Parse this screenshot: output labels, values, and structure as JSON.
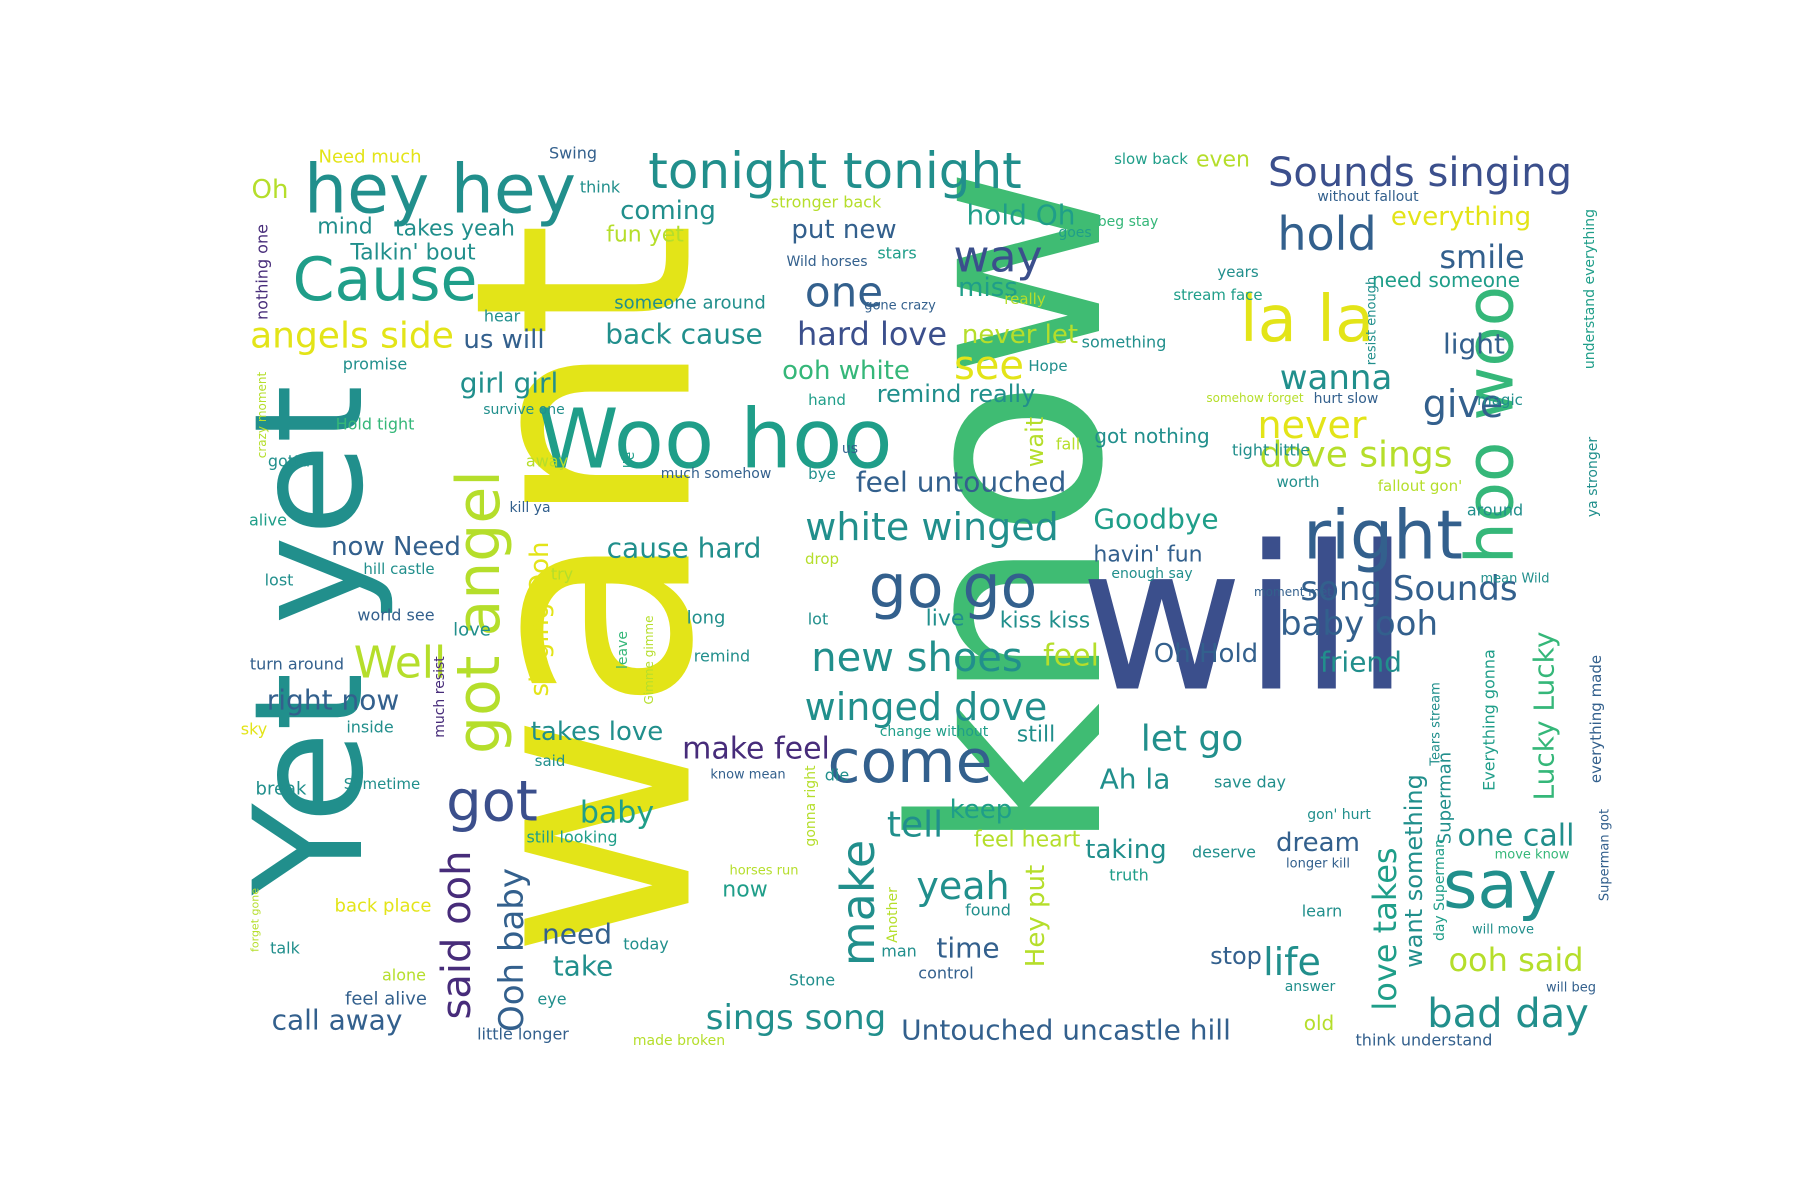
{
  "palette": {
    "navy": "#3b4f8c",
    "purple": "#472c7a",
    "blue": "#33608d",
    "teal": "#218f8c",
    "teal2": "#1f9e89",
    "green": "#35b779",
    "lime": "#b5de2b",
    "yellow": "#e3e418",
    "kgreen": "#3fbc73"
  },
  "words": [
    {
      "text": "want",
      "color": "yellow"
    },
    {
      "text": "know",
      "color": "kgreen"
    },
    {
      "text": "will",
      "color": "navy"
    },
    {
      "text": "Yet yet",
      "color": "teal"
    },
    {
      "text": "Woo hoo",
      "color": "teal2"
    },
    {
      "text": "hoo woo",
      "color": "green"
    },
    {
      "text": "hey hey",
      "color": "teal"
    },
    {
      "text": "Cause",
      "color": "teal2"
    },
    {
      "text": "tonight tonight",
      "color": "teal"
    },
    {
      "text": "Sounds singing",
      "color": "navy"
    },
    {
      "text": "la la",
      "color": "yellow"
    },
    {
      "text": "right",
      "color": "blue"
    },
    {
      "text": "go go",
      "color": "blue"
    },
    {
      "text": "got angel",
      "color": "lime"
    },
    {
      "text": "come",
      "color": "blue"
    },
    {
      "text": "say",
      "color": "teal"
    },
    {
      "text": "hold",
      "color": "blue"
    },
    {
      "text": "way",
      "color": "navy"
    },
    {
      "text": "one",
      "color": "blue"
    },
    {
      "text": "got",
      "color": "navy"
    },
    {
      "text": "make",
      "color": "teal"
    },
    {
      "text": "said ooh",
      "color": "purple"
    },
    {
      "text": "Ooh baby",
      "color": "blue"
    },
    {
      "text": "angels side",
      "color": "yellow"
    },
    {
      "text": "Well",
      "color": "lime"
    },
    {
      "text": "new shoes",
      "color": "teal"
    },
    {
      "text": "winged dove",
      "color": "teal"
    },
    {
      "text": "white winged",
      "color": "teal"
    },
    {
      "text": "give",
      "color": "blue"
    },
    {
      "text": "see",
      "color": "yellow"
    },
    {
      "text": "wanna",
      "color": "teal"
    },
    {
      "text": "never",
      "color": "yellow"
    },
    {
      "text": "dove sings",
      "color": "lime"
    },
    {
      "text": "baby ooh",
      "color": "blue"
    },
    {
      "text": "song Sounds",
      "color": "blue"
    },
    {
      "text": "bad day",
      "color": "teal"
    },
    {
      "text": "life",
      "color": "teal"
    },
    {
      "text": "love takes",
      "color": "teal2"
    },
    {
      "text": "yeah",
      "color": "teal"
    },
    {
      "text": "tell",
      "color": "teal"
    },
    {
      "text": "smile",
      "color": "blue"
    },
    {
      "text": "Lucky Lucky",
      "color": "green"
    },
    {
      "text": "hard love",
      "color": "navy"
    },
    {
      "text": "sings song",
      "color": "teal"
    },
    {
      "text": "Untouched uncastle hill",
      "color": "blue"
    },
    {
      "text": "let go",
      "color": "teal"
    },
    {
      "text": "Goodbye",
      "color": "teal2"
    },
    {
      "text": "Ah la",
      "color": "teal"
    },
    {
      "text": "ooh said",
      "color": "lime"
    },
    {
      "text": "one call",
      "color": "teal"
    },
    {
      "text": "Hey put",
      "color": "lime"
    },
    {
      "text": "make feel",
      "color": "purple"
    },
    {
      "text": "feel untouched",
      "color": "blue"
    },
    {
      "text": "put new",
      "color": "blue"
    },
    {
      "text": "girl girl",
      "color": "teal"
    },
    {
      "text": "cause hard",
      "color": "teal"
    },
    {
      "text": "back cause",
      "color": "teal"
    },
    {
      "text": "us will",
      "color": "blue"
    },
    {
      "text": "feel",
      "color": "lime"
    },
    {
      "text": "Oh Hold",
      "color": "blue"
    },
    {
      "text": "friend",
      "color": "teal"
    },
    {
      "text": "right now",
      "color": "blue"
    },
    {
      "text": "baby",
      "color": "teal2"
    },
    {
      "text": "takes love",
      "color": "teal"
    },
    {
      "text": "call away",
      "color": "blue"
    },
    {
      "text": "need",
      "color": "blue"
    },
    {
      "text": "take",
      "color": "teal"
    },
    {
      "text": "time",
      "color": "blue"
    },
    {
      "text": "stop",
      "color": "blue"
    },
    {
      "text": "keep",
      "color": "teal2"
    },
    {
      "text": "taking",
      "color": "teal"
    },
    {
      "text": "dream",
      "color": "blue"
    },
    {
      "text": "want something",
      "color": "teal"
    },
    {
      "text": "light",
      "color": "blue"
    },
    {
      "text": "everything",
      "color": "yellow"
    },
    {
      "text": "miss",
      "color": "teal2"
    },
    {
      "text": "coming",
      "color": "teal"
    },
    {
      "text": "hold Oh",
      "color": "teal2"
    },
    {
      "text": "ooh white",
      "color": "green"
    },
    {
      "text": "never let",
      "color": "lime"
    },
    {
      "text": "wait",
      "color": "lime"
    },
    {
      "text": "now Need",
      "color": "blue"
    },
    {
      "text": "singing Ooh",
      "color": "yellow"
    },
    {
      "text": "mind",
      "color": "teal"
    },
    {
      "text": "takes yeah",
      "color": "teal"
    },
    {
      "text": "fun yet",
      "color": "lime"
    },
    {
      "text": "Talkin' bout",
      "color": "teal"
    },
    {
      "text": "Oh",
      "color": "lime"
    },
    {
      "text": "even",
      "color": "lime"
    },
    {
      "text": "need someone",
      "color": "teal2"
    },
    {
      "text": "havin' fun",
      "color": "blue"
    },
    {
      "text": "remind really",
      "color": "teal"
    },
    {
      "text": "kiss kiss",
      "color": "teal"
    },
    {
      "text": "live",
      "color": "teal"
    },
    {
      "text": "got nothing",
      "color": "teal"
    },
    {
      "text": "still",
      "color": "teal"
    },
    {
      "text": "now",
      "color": "teal2"
    },
    {
      "text": "feel heart",
      "color": "lime"
    },
    {
      "text": "Superman",
      "color": "teal"
    },
    {
      "text": "Need much",
      "color": "yellow"
    },
    {
      "text": "Swing",
      "color": "blue"
    },
    {
      "text": "think",
      "color": "teal"
    },
    {
      "text": "stronger back",
      "color": "lime"
    },
    {
      "text": "Wild horses",
      "color": "blue"
    },
    {
      "text": "stars",
      "color": "teal2"
    },
    {
      "text": "goes",
      "color": "teal2"
    },
    {
      "text": "beg stay",
      "color": "green"
    },
    {
      "text": "slow back",
      "color": "teal2"
    },
    {
      "text": "without fallout",
      "color": "blue"
    },
    {
      "text": "understand everything",
      "color": "teal2"
    },
    {
      "text": "years",
      "color": "teal"
    },
    {
      "text": "stream face",
      "color": "teal2"
    },
    {
      "text": "resist enough",
      "color": "teal"
    },
    {
      "text": "nothing one",
      "color": "purple"
    },
    {
      "text": "hear",
      "color": "teal"
    },
    {
      "text": "someone around",
      "color": "teal"
    },
    {
      "text": "gone crazy",
      "color": "blue"
    },
    {
      "text": "really",
      "color": "lime"
    },
    {
      "text": "something",
      "color": "teal"
    },
    {
      "text": "Hope",
      "color": "teal"
    },
    {
      "text": "promise",
      "color": "teal"
    },
    {
      "text": "crazy moment",
      "color": "lime"
    },
    {
      "text": "Hold tight",
      "color": "green"
    },
    {
      "text": "survive one",
      "color": "teal"
    },
    {
      "text": "hand",
      "color": "teal2"
    },
    {
      "text": "fall",
      "color": "lime"
    },
    {
      "text": "somehow forget",
      "color": "lime"
    },
    {
      "text": "hurt slow",
      "color": "blue"
    },
    {
      "text": "magic",
      "color": "teal"
    },
    {
      "text": "tight little",
      "color": "teal"
    },
    {
      "text": "gotta",
      "color": "teal"
    },
    {
      "text": "away",
      "color": "lime"
    },
    {
      "text": "lie",
      "color": "teal2"
    },
    {
      "text": "us",
      "color": "blue"
    },
    {
      "text": "much somehow",
      "color": "blue"
    },
    {
      "text": "bye",
      "color": "teal"
    },
    {
      "text": "fallout gon'",
      "color": "lime"
    },
    {
      "text": "worth",
      "color": "teal"
    },
    {
      "text": "around",
      "color": "teal"
    },
    {
      "text": "ya stronger",
      "color": "teal"
    },
    {
      "text": "alive",
      "color": "teal2"
    },
    {
      "text": "kill ya",
      "color": "blue"
    },
    {
      "text": "lost",
      "color": "teal"
    },
    {
      "text": "hill castle",
      "color": "teal"
    },
    {
      "text": "drop",
      "color": "lime"
    },
    {
      "text": "enough say",
      "color": "teal"
    },
    {
      "text": "try",
      "color": "lime"
    },
    {
      "text": "moment met",
      "color": "blue"
    },
    {
      "text": "mean Wild",
      "color": "teal"
    },
    {
      "text": "world see",
      "color": "blue"
    },
    {
      "text": "love",
      "color": "teal"
    },
    {
      "text": "long",
      "color": "teal"
    },
    {
      "text": "lot",
      "color": "teal"
    },
    {
      "text": "leave",
      "color": "green"
    },
    {
      "text": "Gimme gimme",
      "color": "lime"
    },
    {
      "text": "remind",
      "color": "teal"
    },
    {
      "text": "Everything gonna",
      "color": "teal2"
    },
    {
      "text": "everything made",
      "color": "blue"
    },
    {
      "text": "turn around",
      "color": "blue"
    },
    {
      "text": "much resist",
      "color": "purple"
    },
    {
      "text": "sky",
      "color": "yellow"
    },
    {
      "text": "inside",
      "color": "teal"
    },
    {
      "text": "change without",
      "color": "teal2"
    },
    {
      "text": "Tears stream",
      "color": "teal"
    },
    {
      "text": "said",
      "color": "teal"
    },
    {
      "text": "know mean",
      "color": "blue"
    },
    {
      "text": "break",
      "color": "teal"
    },
    {
      "text": "Sometime",
      "color": "teal"
    },
    {
      "text": "die",
      "color": "teal"
    },
    {
      "text": "gonna right",
      "color": "lime"
    },
    {
      "text": "save day",
      "color": "teal"
    },
    {
      "text": "gon' hurt",
      "color": "teal"
    },
    {
      "text": "Superman got",
      "color": "blue"
    },
    {
      "text": "still looking",
      "color": "teal2"
    },
    {
      "text": "horses run",
      "color": "lime"
    },
    {
      "text": "deserve",
      "color": "teal"
    },
    {
      "text": "longer kill",
      "color": "blue"
    },
    {
      "text": "move know",
      "color": "green"
    },
    {
      "text": "back place",
      "color": "yellow"
    },
    {
      "text": "Another",
      "color": "lime"
    },
    {
      "text": "found",
      "color": "teal"
    },
    {
      "text": "truth",
      "color": "teal2"
    },
    {
      "text": "learn",
      "color": "teal"
    },
    {
      "text": "day Superman",
      "color": "teal2"
    },
    {
      "text": "will move",
      "color": "teal"
    },
    {
      "text": "forget gone",
      "color": "lime"
    },
    {
      "text": "talk",
      "color": "teal"
    },
    {
      "text": "today",
      "color": "teal"
    },
    {
      "text": "man",
      "color": "teal"
    },
    {
      "text": "alone",
      "color": "lime"
    },
    {
      "text": "Stone",
      "color": "teal"
    },
    {
      "text": "control",
      "color": "blue"
    },
    {
      "text": "answer",
      "color": "teal"
    },
    {
      "text": "will beg",
      "color": "blue"
    },
    {
      "text": "feel alive",
      "color": "blue"
    },
    {
      "text": "eye",
      "color": "teal"
    },
    {
      "text": "old",
      "color": "lime"
    },
    {
      "text": "little longer",
      "color": "blue"
    },
    {
      "text": "made broken",
      "color": "lime"
    },
    {
      "text": "think understand",
      "color": "blue"
    }
  ]
}
